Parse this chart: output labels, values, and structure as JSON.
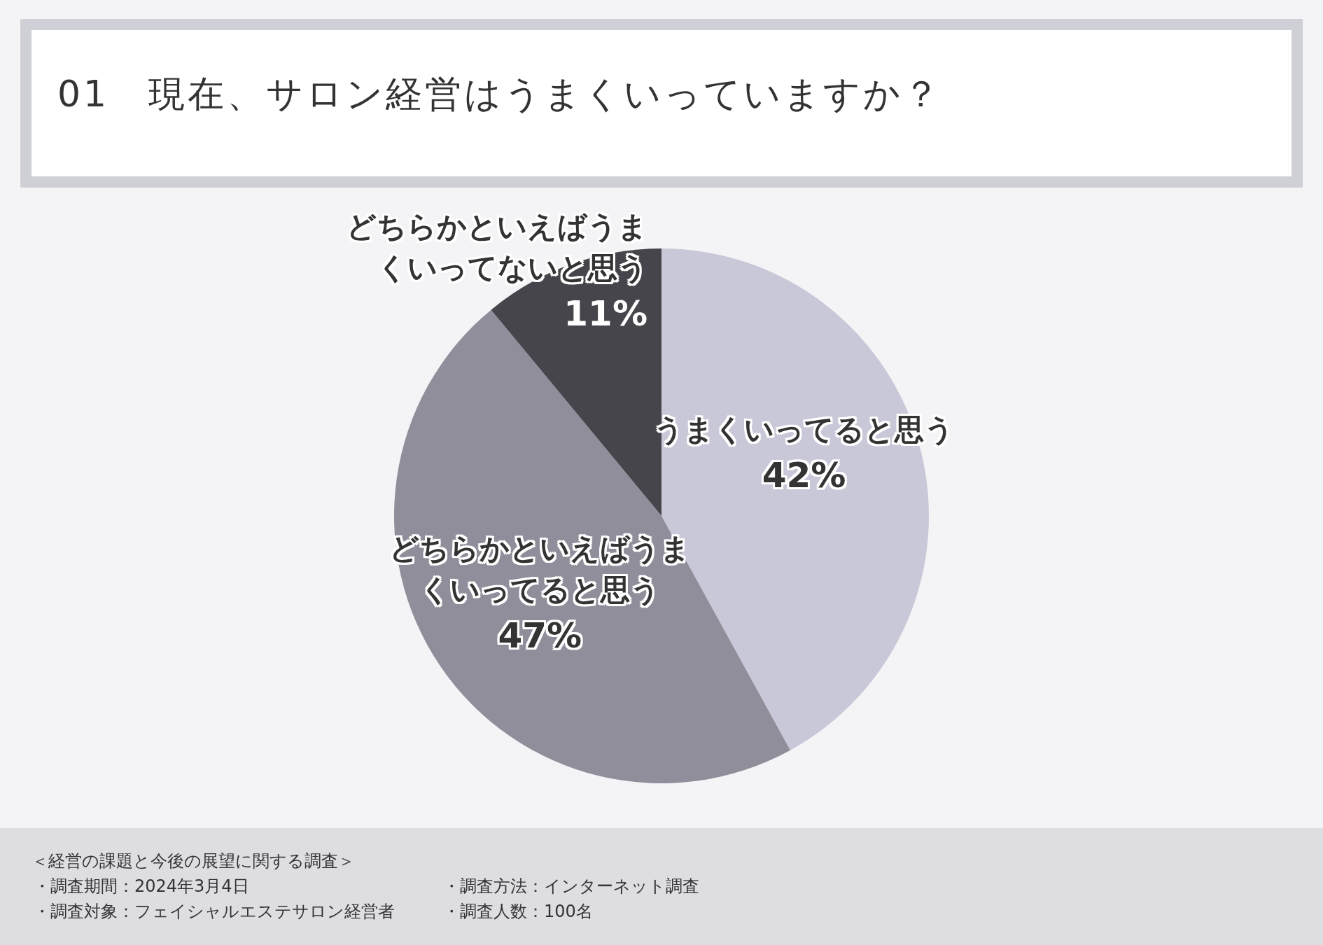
{
  "chart_data": {
    "type": "pie",
    "title": "01　現在、サロン経営はうまくいっていますか？",
    "categories": [
      "うまくいってると思う",
      "どちらかといえばうまくいってると思う",
      "どちらかといえばうまくいってないと思う"
    ],
    "values": [
      42,
      47,
      11
    ],
    "colors": [
      "#c9c8d8",
      "#908e9b",
      "#46454b"
    ],
    "value_labels": [
      "42%",
      "47%",
      "11%"
    ],
    "annotations": [
      "＜経営の課題と今後の展望に関する調査＞",
      "・調査期間：2024年3月4日",
      "・調査方法：インターネット調査",
      "・調査対象：フェイシャルエステサロン経営者",
      "・調査人数：100名"
    ]
  }
}
